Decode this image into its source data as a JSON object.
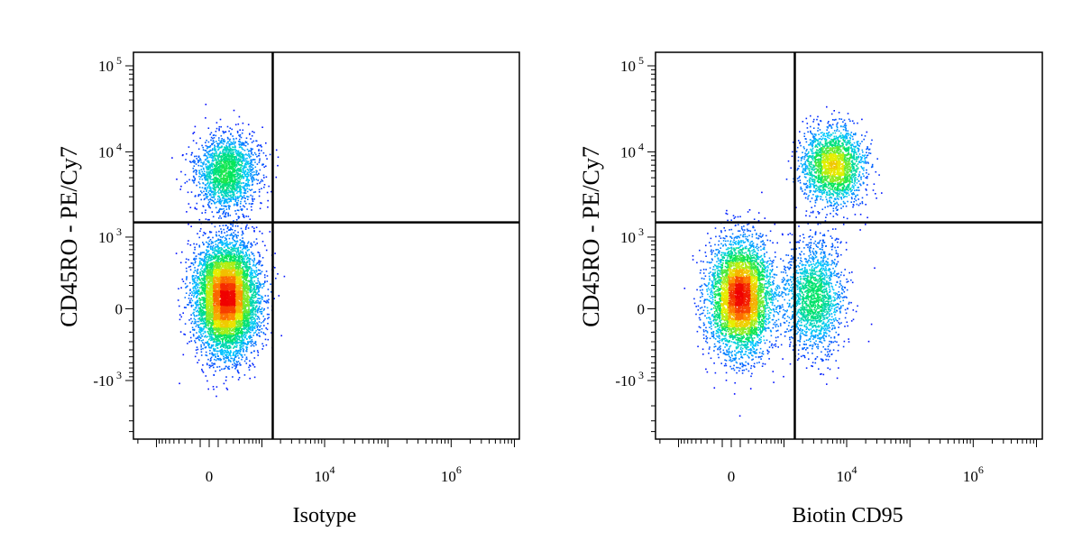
{
  "chart_data": [
    {
      "type": "scatter",
      "subtype": "flow-cytometry-density-dot-plot",
      "xlabel": "Isotype",
      "ylabel": "CD45RO - PE/Cy7",
      "x_scale": "biexponential",
      "y_scale": "biexponential",
      "grid": false,
      "x_ticks": [
        {
          "base": "0",
          "exp": ""
        },
        {
          "base": "10",
          "exp": "4"
        },
        {
          "base": "10",
          "exp": "6"
        }
      ],
      "y_ticks": [
        {
          "base": "10",
          "exp": "5"
        },
        {
          "base": "10",
          "exp": "4"
        },
        {
          "base": "10",
          "exp": "3"
        },
        {
          "base": "0",
          "exp": ""
        },
        {
          "base": "-10",
          "exp": "3"
        }
      ],
      "quadrant_gate": {
        "x": 1500,
        "y": 1500
      },
      "populations": [
        {
          "label": "CD45RO+ Isotype-",
          "x_center": 200,
          "y_center": 6000,
          "weight": 0.22
        },
        {
          "label": "CD45RO- Isotype-",
          "x_center": 200,
          "y_center": 100,
          "weight": 0.78
        }
      ],
      "colors": [
        "#0000ff",
        "#00ffff",
        "#00ff00",
        "#ffff00",
        "#ff0000"
      ]
    },
    {
      "type": "scatter",
      "subtype": "flow-cytometry-density-dot-plot",
      "xlabel": "Biotin CD95",
      "ylabel": "CD45RO - PE/Cy7",
      "x_scale": "biexponential",
      "y_scale": "biexponential",
      "grid": false,
      "x_ticks": [
        {
          "base": "0",
          "exp": ""
        },
        {
          "base": "10",
          "exp": "4"
        },
        {
          "base": "10",
          "exp": "6"
        }
      ],
      "y_ticks": [
        {
          "base": "10",
          "exp": "5"
        },
        {
          "base": "10",
          "exp": "4"
        },
        {
          "base": "10",
          "exp": "3"
        },
        {
          "base": "0",
          "exp": ""
        },
        {
          "base": "-10",
          "exp": "3"
        }
      ],
      "quadrant_gate": {
        "x": 1500,
        "y": 1500
      },
      "populations": [
        {
          "label": "CD45RO- CD95-",
          "x_center": 100,
          "y_center": 100,
          "weight": 0.55
        },
        {
          "label": "CD45RO- CD95+",
          "x_center": 3000,
          "y_center": 100,
          "weight": 0.2
        },
        {
          "label": "CD45RO+ CD95+",
          "x_center": 6000,
          "y_center": 7000,
          "weight": 0.25
        }
      ],
      "colors": [
        "#0000ff",
        "#00ffff",
        "#00ff00",
        "#ffff00",
        "#ff0000"
      ]
    }
  ]
}
